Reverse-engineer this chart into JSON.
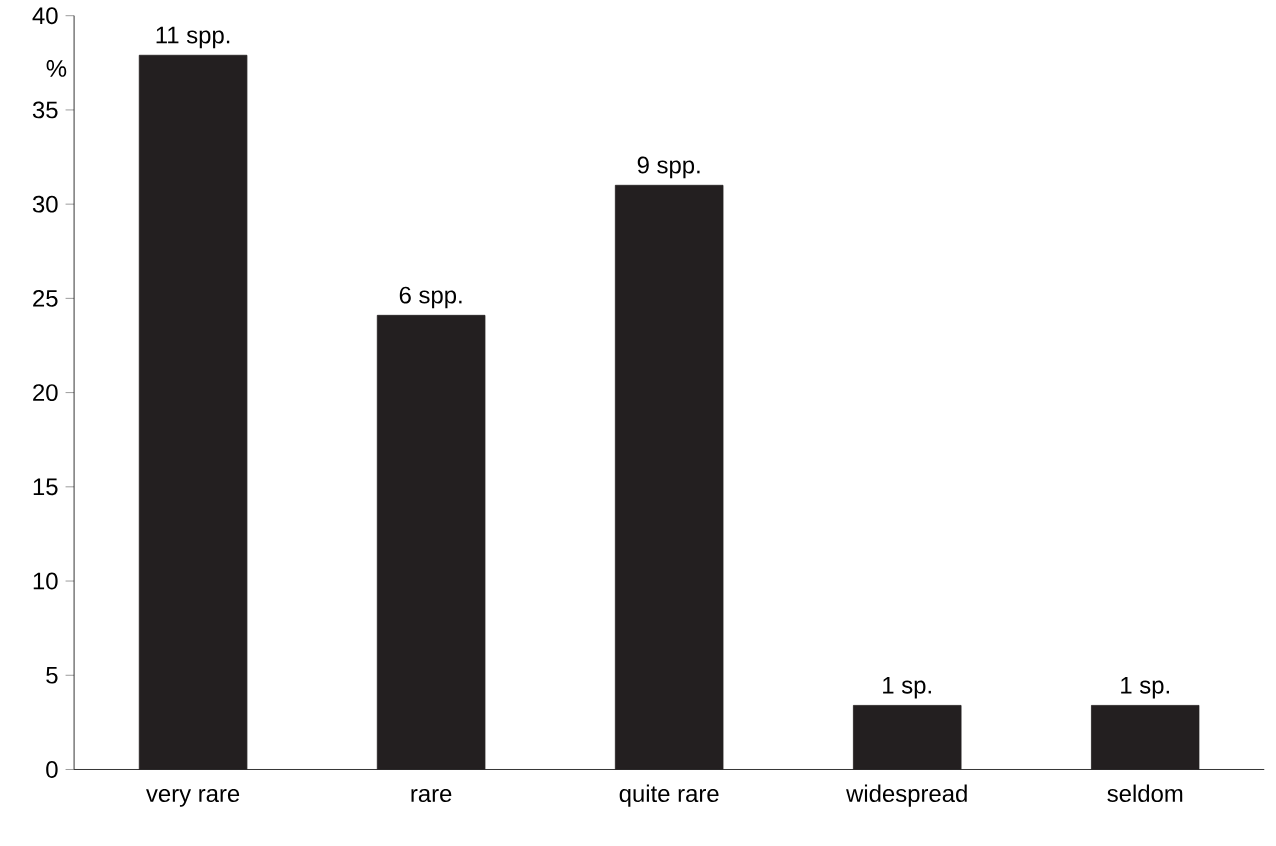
{
  "chart_data": {
    "type": "bar",
    "ylabel": "%",
    "categories": [
      "very rare",
      "rare",
      "quite rare",
      "widespread",
      "seldom"
    ],
    "values": [
      37.9,
      24.1,
      31.0,
      3.4,
      3.4
    ],
    "annotations": [
      {
        "text": "11 spp.",
        "x": "very rare",
        "y": 37.9
      },
      {
        "text": "6 spp.",
        "x": "rare",
        "y": 24.1
      },
      {
        "text": "9 spp.",
        "x": "quite rare",
        "y": 31.0
      },
      {
        "text": "1 sp.",
        "x": "widespread",
        "y": 3.4
      },
      {
        "text": "1 sp.",
        "x": "seldom",
        "y": 3.4
      }
    ],
    "color": "#231f20",
    "ylim": [
      0,
      40
    ],
    "yticks": [
      0,
      5,
      10,
      15,
      20,
      25,
      30,
      35,
      40
    ]
  }
}
